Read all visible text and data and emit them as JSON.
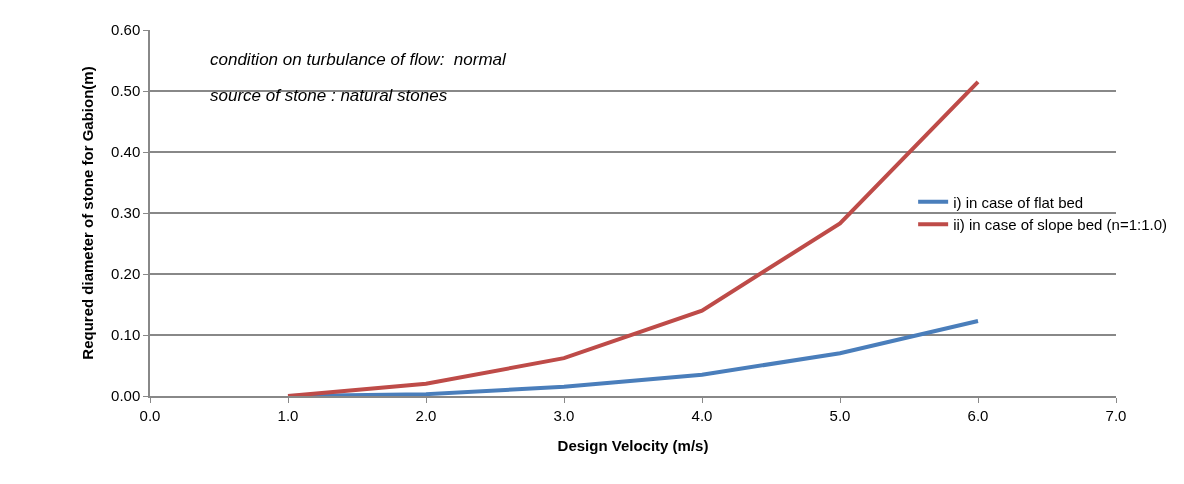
{
  "chart_data": {
    "type": "line",
    "xlabel": "Design Velocity (m/s)",
    "ylabel": "Requred diameter of stone for Gabion(m)",
    "x": [
      1,
      2,
      3,
      4,
      5,
      6
    ],
    "series": [
      {
        "name": "i) in case of flat bed",
        "color": "#4a7ebb",
        "values": [
          0,
          0.003,
          0.015,
          0.035,
          0.07,
          0.123
        ]
      },
      {
        "name": "ii) in case of slope bed (n=1:1.0)",
        "color": "#be4b48",
        "values": [
          0,
          0.02,
          0.062,
          0.14,
          0.283,
          0.515
        ]
      }
    ],
    "xlim": [
      0,
      7
    ],
    "xticks": [
      {
        "value": 0,
        "label": "0.0"
      },
      {
        "value": 1,
        "label": "1.0"
      },
      {
        "value": 2,
        "label": "2.0"
      },
      {
        "value": 3,
        "label": "3.0"
      },
      {
        "value": 4,
        "label": "4.0"
      },
      {
        "value": 5,
        "label": "5.0"
      },
      {
        "value": 6,
        "label": "6.0"
      },
      {
        "value": 7,
        "label": "7.0"
      }
    ],
    "ylim": [
      0,
      0.6
    ],
    "yticks": [
      {
        "value": 0,
        "label": "0.00"
      },
      {
        "value": 0.1,
        "label": "0.10"
      },
      {
        "value": 0.2,
        "label": "0.20"
      },
      {
        "value": 0.3,
        "label": "0.30"
      },
      {
        "value": 0.4,
        "label": "0.40"
      },
      {
        "value": 0.5,
        "label": "0.50"
      },
      {
        "value": 0.6,
        "label": "0.60"
      }
    ],
    "grid": "y",
    "legend": "right",
    "marker": "none",
    "line_style": "solid",
    "annotations": [
      "condition on turbulance of flow:  normal",
      "source of stone : natural stones"
    ]
  }
}
